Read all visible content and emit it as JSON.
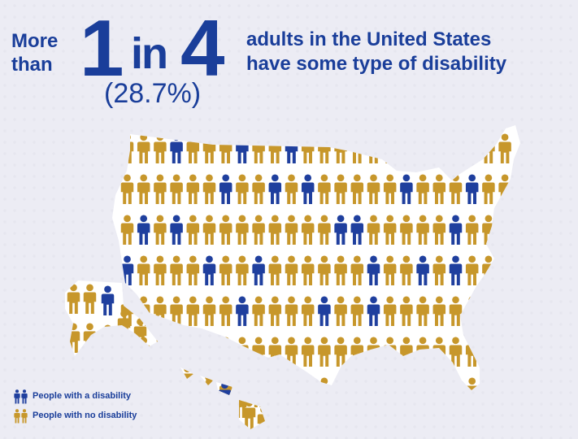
{
  "headline": {
    "prefix_line1": "More",
    "prefix_line2": "than",
    "big_one": "1",
    "big_in": "in",
    "big_four": "4",
    "percent": "(28.7%)",
    "suffix_line1": "adults in the United States",
    "suffix_line2": "have some type of disability"
  },
  "legend": {
    "disability_label": "People with a disability",
    "no_disability_label": "People with no disability"
  },
  "colors": {
    "disability": "#1f3f9e",
    "no_disability": "#c7972b",
    "headline": "#1a3e9a",
    "background": "#ececf4"
  },
  "icons": {
    "person_disability": "person-icon-blue",
    "person_no_disability": "person-icon-gold",
    "map": "us-map-silhouette"
  }
}
